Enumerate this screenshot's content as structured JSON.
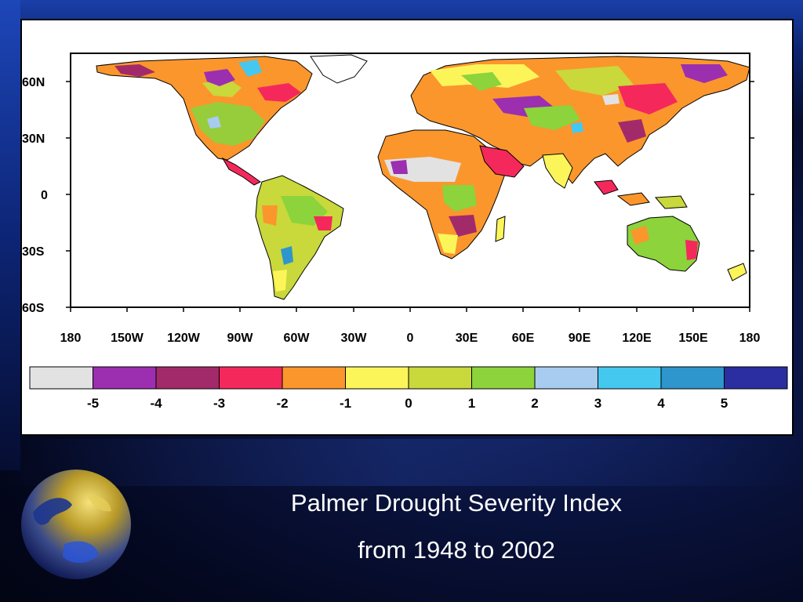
{
  "slide": {
    "caption_line1": "Palmer Drought Severity Index",
    "caption_line2": "from 1948 to 2002"
  },
  "map": {
    "projection": "equirectangular",
    "lon_range": [
      -180,
      180
    ],
    "lat_range": [
      -60,
      75
    ],
    "lat_ticks": [
      "60N",
      "30N",
      "0",
      "30S",
      "60S"
    ],
    "lon_ticks": [
      "180",
      "150W",
      "120W",
      "90W",
      "60W",
      "30W",
      "0",
      "30E",
      "60E",
      "90E",
      "120E",
      "150E",
      "180"
    ],
    "ocean_color": "#ffffff",
    "coastline_color": "#000000"
  },
  "colorbar": {
    "labels": [
      "-5",
      "-4",
      "-3",
      "-2",
      "-1",
      "0",
      "1",
      "2",
      "3",
      "4",
      "5"
    ],
    "colors": [
      "#e2e2e2",
      "#9b2fb0",
      "#a32a6a",
      "#f5285c",
      "#fb962c",
      "#fcf55a",
      "#c9d83a",
      "#8cd33c",
      "#a8cbf0",
      "#44c8f0",
      "#2e96cc",
      "#2a2ea0"
    ]
  }
}
